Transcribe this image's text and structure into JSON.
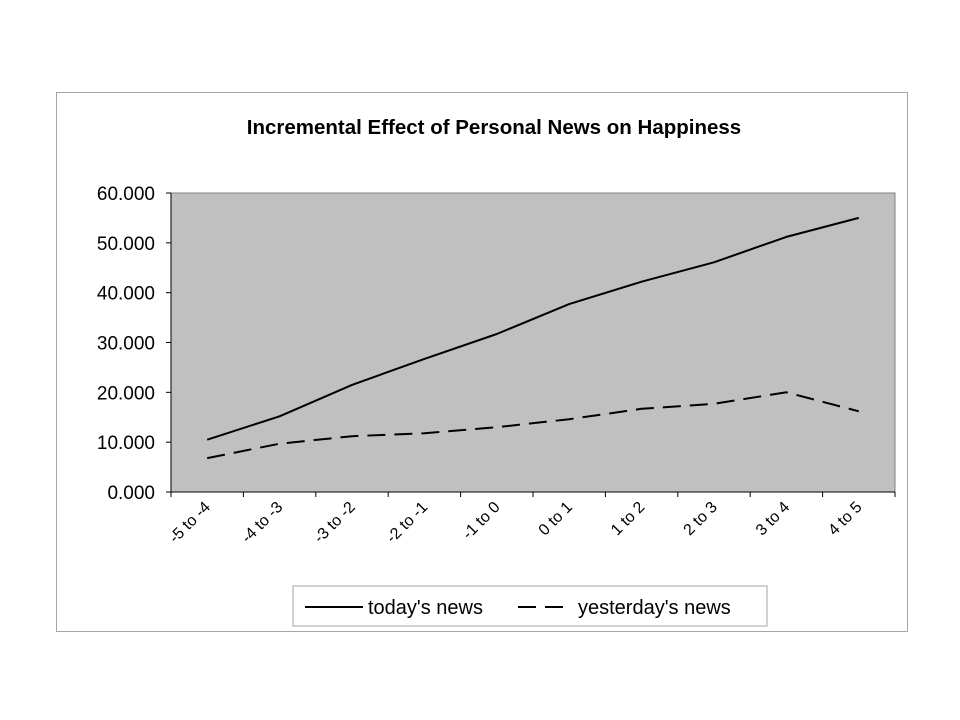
{
  "chart_data": {
    "type": "line",
    "title": "Incremental Effect of Personal News on Happiness",
    "categories": [
      "-5 to -4",
      "-4 to -3",
      "-3 to -2",
      "-2 to -1",
      "-1 to 0",
      "0 to 1",
      "1 to 2",
      "2 to 3",
      "3 to 4",
      "4 to 5"
    ],
    "series": [
      {
        "name": "today's news",
        "style": "solid",
        "values": [
          10.5,
          15.2,
          21.5,
          26.7,
          31.7,
          37.7,
          42.2,
          46.1,
          51.2,
          55.0
        ]
      },
      {
        "name": "yesterday's news",
        "style": "dashed",
        "values": [
          6.8,
          9.7,
          11.2,
          11.8,
          13.0,
          14.6,
          16.7,
          17.7,
          20.0,
          16.2
        ]
      }
    ],
    "ylim": [
      0,
      60
    ],
    "yticks": [
      0,
      10,
      20,
      30,
      40,
      50,
      60
    ],
    "ytick_labels": [
      "0.000",
      "10.000",
      "20.000",
      "30.000",
      "40.000",
      "50.000",
      "60.000"
    ],
    "xlabel": "",
    "ylabel": "",
    "grid": false,
    "plot_background": "#c0c0c0",
    "line_color": "#000000",
    "legend_position": "bottom"
  }
}
